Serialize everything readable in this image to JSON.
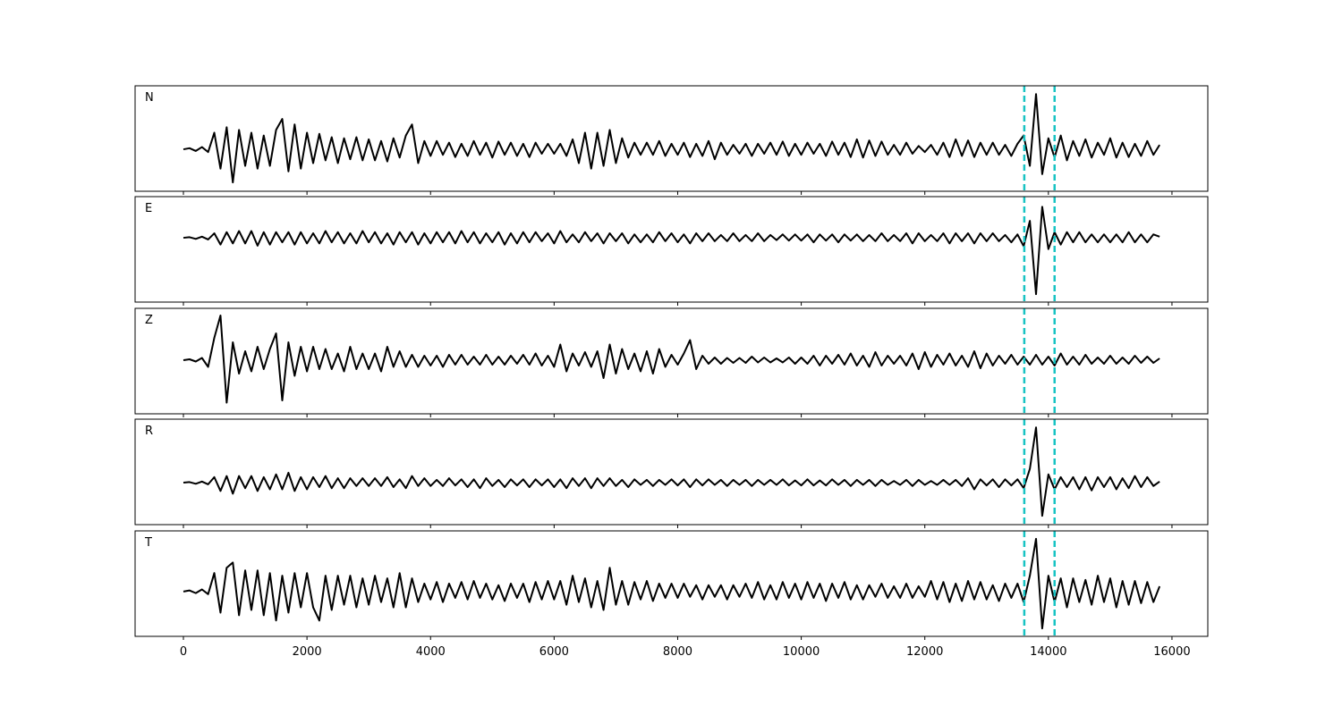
{
  "chart_data": {
    "type": "line",
    "x": [
      0,
      100,
      200,
      300,
      400,
      500,
      600,
      700,
      800,
      900,
      1000,
      1100,
      1200,
      1300,
      1400,
      1500,
      1600,
      1700,
      1800,
      1900,
      2000,
      2100,
      2200,
      2300,
      2400,
      2500,
      2600,
      2700,
      2800,
      2900,
      3000,
      3100,
      3200,
      3300,
      3400,
      3500,
      3600,
      3700,
      3800,
      3900,
      4000,
      4100,
      4200,
      4300,
      4400,
      4500,
      4600,
      4700,
      4800,
      4900,
      5000,
      5100,
      5200,
      5300,
      5400,
      5500,
      5600,
      5700,
      5800,
      5900,
      6000,
      6100,
      6200,
      6300,
      6400,
      6500,
      6600,
      6700,
      6800,
      6900,
      7000,
      7100,
      7200,
      7300,
      7400,
      7500,
      7600,
      7700,
      7800,
      7900,
      8000,
      8100,
      8200,
      8300,
      8400,
      8500,
      8600,
      8700,
      8800,
      8900,
      9000,
      9100,
      9200,
      9300,
      9400,
      9500,
      9600,
      9700,
      9800,
      9900,
      10000,
      10100,
      10200,
      10300,
      10400,
      10500,
      10600,
      10700,
      10800,
      10900,
      11000,
      11100,
      11200,
      11300,
      11400,
      11500,
      11600,
      11700,
      11800,
      11900,
      12000,
      12100,
      12200,
      12300,
      12400,
      12500,
      12600,
      12700,
      12800,
      12900,
      13000,
      13100,
      13200,
      13300,
      13400,
      13500,
      13600,
      13700,
      13800,
      13900,
      14000,
      14100,
      14200,
      14300,
      14400,
      14500,
      14600,
      14700,
      14800,
      14900,
      15000,
      15100,
      15200,
      15300,
      15400,
      15500,
      15600,
      15700,
      15800
    ],
    "xlim": [
      -782,
      16580
    ],
    "xticks": [
      0,
      2000,
      4000,
      6000,
      8000,
      10000,
      12000,
      14000,
      16000
    ],
    "vlines": [
      13610,
      14100
    ],
    "vline_color": "#17c3c3",
    "series": [
      {
        "name": "N",
        "color": "#000000",
        "ylim": [
          -0.76,
          1.15
        ],
        "values": [
          0,
          0.02,
          -0.03,
          0.04,
          -0.05,
          0.3,
          -0.35,
          0.4,
          -0.6,
          0.35,
          -0.3,
          0.3,
          -0.35,
          0.25,
          -0.3,
          0.35,
          0.55,
          -0.4,
          0.45,
          -0.35,
          0.3,
          -0.25,
          0.28,
          -0.2,
          0.22,
          -0.25,
          0.2,
          -0.18,
          0.22,
          -0.2,
          0.18,
          -0.2,
          0.15,
          -0.22,
          0.2,
          -0.15,
          0.25,
          0.45,
          -0.25,
          0.15,
          -0.12,
          0.15,
          -0.1,
          0.12,
          -0.14,
          0.1,
          -0.12,
          0.15,
          -0.1,
          0.12,
          -0.15,
          0.14,
          -0.1,
          0.12,
          -0.12,
          0.1,
          -0.14,
          0.12,
          -0.08,
          0.1,
          -0.08,
          0.1,
          -0.12,
          0.18,
          -0.25,
          0.3,
          -0.35,
          0.3,
          -0.3,
          0.35,
          -0.25,
          0.2,
          -0.15,
          0.12,
          -0.1,
          0.12,
          -0.1,
          0.15,
          -0.12,
          0.1,
          -0.1,
          0.12,
          -0.14,
          0.1,
          -0.12,
          0.15,
          -0.18,
          0.12,
          -0.1,
          0.08,
          -0.08,
          0.1,
          -0.12,
          0.1,
          -0.08,
          0.12,
          -0.1,
          0.14,
          -0.12,
          0.1,
          -0.1,
          0.12,
          -0.08,
          0.1,
          -0.12,
          0.14,
          -0.1,
          0.12,
          -0.14,
          0.18,
          -0.15,
          0.16,
          -0.12,
          0.14,
          -0.1,
          0.08,
          -0.1,
          0.12,
          -0.08,
          0.06,
          -0.05,
          0.08,
          -0.1,
          0.12,
          -0.14,
          0.18,
          -0.12,
          0.16,
          -0.14,
          0.12,
          -0.1,
          0.12,
          -0.1,
          0.08,
          -0.12,
          0.1,
          0.25,
          -0.3,
          1.0,
          -0.45,
          0.2,
          -0.15,
          0.25,
          -0.2,
          0.15,
          -0.12,
          0.18,
          -0.15,
          0.12,
          -0.1,
          0.2,
          -0.15,
          0.12,
          -0.14,
          0.1,
          -0.12,
          0.15,
          -0.1,
          0.08
        ]
      },
      {
        "name": "E",
        "color": "#000000",
        "ylim": [
          -1.14,
          0.73
        ],
        "values": [
          0,
          0.01,
          -0.02,
          0.02,
          -0.03,
          0.08,
          -0.12,
          0.1,
          -0.1,
          0.12,
          -0.1,
          0.12,
          -0.14,
          0.1,
          -0.12,
          0.1,
          -0.08,
          0.1,
          -0.12,
          0.1,
          -0.1,
          0.08,
          -0.1,
          0.12,
          -0.08,
          0.1,
          -0.1,
          0.08,
          -0.1,
          0.12,
          -0.08,
          0.1,
          -0.1,
          0.08,
          -0.12,
          0.1,
          -0.08,
          0.1,
          -0.12,
          0.08,
          -0.1,
          0.1,
          -0.08,
          0.1,
          -0.1,
          0.12,
          -0.08,
          0.1,
          -0.1,
          0.08,
          -0.08,
          0.1,
          -0.12,
          0.08,
          -0.1,
          0.1,
          -0.08,
          0.1,
          -0.06,
          0.08,
          -0.1,
          0.12,
          -0.08,
          0.06,
          -0.08,
          0.1,
          -0.06,
          0.08,
          -0.1,
          0.08,
          -0.06,
          0.08,
          -0.1,
          0.06,
          -0.08,
          0.06,
          -0.08,
          0.1,
          -0.06,
          0.08,
          -0.08,
          0.06,
          -0.1,
          0.08,
          -0.06,
          0.08,
          -0.06,
          0.05,
          -0.06,
          0.08,
          -0.06,
          0.05,
          -0.06,
          0.08,
          -0.06,
          0.05,
          -0.04,
          0.06,
          -0.05,
          0.06,
          -0.05,
          0.06,
          -0.08,
          0.06,
          -0.05,
          0.06,
          -0.08,
          0.06,
          -0.05,
          0.06,
          -0.06,
          0.05,
          -0.06,
          0.08,
          -0.06,
          0.05,
          -0.06,
          0.08,
          -0.1,
          0.08,
          -0.06,
          0.05,
          -0.06,
          0.08,
          -0.1,
          0.08,
          -0.06,
          0.08,
          -0.1,
          0.08,
          -0.06,
          0.08,
          -0.06,
          0.05,
          -0.08,
          0.06,
          -0.15,
          0.3,
          -1.0,
          0.55,
          -0.2,
          0.1,
          -0.12,
          0.1,
          -0.08,
          0.1,
          -0.08,
          0.06,
          -0.08,
          0.06,
          -0.08,
          0.06,
          -0.08,
          0.1,
          -0.08,
          0.06,
          -0.08,
          0.06,
          0.02
        ]
      },
      {
        "name": "Z",
        "color": "#000000",
        "ylim": [
          -1.2,
          1.16
        ],
        "values": [
          0,
          0.02,
          -0.03,
          0.05,
          -0.15,
          0.5,
          1.0,
          -0.95,
          0.4,
          -0.3,
          0.2,
          -0.25,
          0.3,
          -0.2,
          0.25,
          0.6,
          -0.9,
          0.4,
          -0.35,
          0.3,
          -0.25,
          0.3,
          -0.2,
          0.25,
          -0.2,
          0.15,
          -0.25,
          0.3,
          -0.2,
          0.15,
          -0.2,
          0.15,
          -0.25,
          0.3,
          -0.15,
          0.2,
          -0.15,
          0.12,
          -0.15,
          0.1,
          -0.12,
          0.1,
          -0.15,
          0.12,
          -0.1,
          0.12,
          -0.1,
          0.08,
          -0.1,
          0.12,
          -0.1,
          0.08,
          -0.1,
          0.1,
          -0.08,
          0.12,
          -0.1,
          0.15,
          -0.12,
          0.1,
          -0.15,
          0.35,
          -0.25,
          0.15,
          -0.12,
          0.18,
          -0.15,
          0.2,
          -0.4,
          0.35,
          -0.3,
          0.25,
          -0.2,
          0.15,
          -0.25,
          0.2,
          -0.3,
          0.25,
          -0.15,
          0.12,
          -0.1,
          0.15,
          0.45,
          -0.2,
          0.1,
          -0.08,
          0.06,
          -0.08,
          0.05,
          -0.06,
          0.05,
          -0.06,
          0.08,
          -0.05,
          0.06,
          -0.05,
          0.04,
          -0.05,
          0.06,
          -0.08,
          0.06,
          -0.08,
          0.1,
          -0.12,
          0.1,
          -0.08,
          0.12,
          -0.1,
          0.15,
          -0.12,
          0.1,
          -0.15,
          0.18,
          -0.12,
          0.1,
          -0.08,
          0.1,
          -0.12,
          0.15,
          -0.2,
          0.18,
          -0.15,
          0.12,
          -0.1,
          0.15,
          -0.12,
          0.1,
          -0.15,
          0.2,
          -0.18,
          0.15,
          -0.12,
          0.1,
          -0.08,
          0.12,
          -0.1,
          0.08,
          -0.1,
          0.12,
          -0.1,
          0.08,
          -0.12,
          0.15,
          -0.1,
          0.08,
          -0.1,
          0.12,
          -0.08,
          0.06,
          -0.08,
          0.1,
          -0.08,
          0.06,
          -0.08,
          0.1,
          -0.06,
          0.08,
          -0.06,
          0.04
        ]
      },
      {
        "name": "R",
        "color": "#000000",
        "ylim": [
          -0.76,
          1.15
        ],
        "values": [
          0,
          0.01,
          -0.02,
          0.02,
          -0.03,
          0.1,
          -0.15,
          0.12,
          -0.2,
          0.12,
          -0.1,
          0.12,
          -0.15,
          0.1,
          -0.12,
          0.15,
          -0.12,
          0.18,
          -0.15,
          0.1,
          -0.12,
          0.1,
          -0.08,
          0.12,
          -0.1,
          0.08,
          -0.1,
          0.08,
          -0.06,
          0.08,
          -0.06,
          0.08,
          -0.06,
          0.1,
          -0.08,
          0.06,
          -0.1,
          0.12,
          -0.06,
          0.08,
          -0.06,
          0.05,
          -0.06,
          0.08,
          -0.05,
          0.06,
          -0.08,
          0.06,
          -0.1,
          0.08,
          -0.06,
          0.05,
          -0.08,
          0.06,
          -0.05,
          0.06,
          -0.08,
          0.06,
          -0.05,
          0.06,
          -0.08,
          0.06,
          -0.1,
          0.08,
          -0.06,
          0.08,
          -0.1,
          0.08,
          -0.06,
          0.08,
          -0.06,
          0.05,
          -0.08,
          0.06,
          -0.04,
          0.05,
          -0.06,
          0.05,
          -0.04,
          0.06,
          -0.05,
          0.06,
          -0.08,
          0.06,
          -0.05,
          0.06,
          -0.04,
          0.05,
          -0.06,
          0.05,
          -0.04,
          0.05,
          -0.06,
          0.05,
          -0.04,
          0.05,
          -0.04,
          0.06,
          -0.05,
          0.04,
          -0.05,
          0.06,
          -0.05,
          0.04,
          -0.05,
          0.06,
          -0.04,
          0.05,
          -0.06,
          0.05,
          -0.04,
          0.05,
          -0.06,
          0.05,
          -0.04,
          0.03,
          -0.04,
          0.05,
          -0.06,
          0.05,
          -0.04,
          0.03,
          -0.04,
          0.05,
          -0.04,
          0.05,
          -0.06,
          0.08,
          -0.12,
          0.06,
          -0.05,
          0.06,
          -0.08,
          0.06,
          -0.05,
          0.06,
          -0.1,
          0.25,
          1.0,
          -0.6,
          0.15,
          -0.12,
          0.1,
          -0.08,
          0.1,
          -0.12,
          0.1,
          -0.14,
          0.1,
          -0.08,
          0.1,
          -0.12,
          0.08,
          -0.1,
          0.12,
          -0.08,
          0.1,
          -0.06,
          0.02
        ]
      },
      {
        "name": "T",
        "color": "#000000",
        "ylim": [
          -0.85,
          1.15
        ],
        "values": [
          0,
          0.02,
          -0.03,
          0.04,
          -0.05,
          0.35,
          -0.4,
          0.45,
          0.55,
          -0.45,
          0.4,
          -0.35,
          0.4,
          -0.45,
          0.35,
          -0.55,
          0.3,
          -0.4,
          0.35,
          -0.3,
          0.35,
          -0.3,
          -0.55,
          0.3,
          -0.35,
          0.3,
          -0.25,
          0.3,
          -0.3,
          0.25,
          -0.25,
          0.3,
          -0.2,
          0.25,
          -0.3,
          0.35,
          -0.3,
          0.25,
          -0.2,
          0.15,
          -0.15,
          0.18,
          -0.2,
          0.15,
          -0.12,
          0.18,
          -0.15,
          0.2,
          -0.12,
          0.15,
          -0.15,
          0.12,
          -0.18,
          0.15,
          -0.12,
          0.15,
          -0.2,
          0.18,
          -0.15,
          0.2,
          -0.15,
          0.2,
          -0.25,
          0.3,
          -0.2,
          0.25,
          -0.3,
          0.2,
          -0.35,
          0.45,
          -0.25,
          0.2,
          -0.25,
          0.18,
          -0.15,
          0.2,
          -0.18,
          0.15,
          -0.12,
          0.15,
          -0.12,
          0.15,
          -0.1,
          0.12,
          -0.15,
          0.12,
          -0.1,
          0.12,
          -0.15,
          0.12,
          -0.1,
          0.15,
          -0.12,
          0.18,
          -0.15,
          0.12,
          -0.15,
          0.18,
          -0.12,
          0.15,
          -0.15,
          0.18,
          -0.12,
          0.15,
          -0.18,
          0.15,
          -0.12,
          0.18,
          -0.15,
          0.12,
          -0.15,
          0.12,
          -0.1,
          0.15,
          -0.12,
          0.1,
          -0.12,
          0.15,
          -0.12,
          0.1,
          -0.1,
          0.2,
          -0.15,
          0.18,
          -0.2,
          0.15,
          -0.18,
          0.2,
          -0.15,
          0.18,
          -0.15,
          0.12,
          -0.18,
          0.15,
          -0.12,
          0.15,
          -0.2,
          0.3,
          1.0,
          -0.7,
          0.3,
          -0.2,
          0.25,
          -0.3,
          0.25,
          -0.2,
          0.22,
          -0.25,
          0.3,
          -0.2,
          0.25,
          -0.3,
          0.2,
          -0.25,
          0.2,
          -0.22,
          0.18,
          -0.2,
          0.1
        ]
      }
    ]
  }
}
